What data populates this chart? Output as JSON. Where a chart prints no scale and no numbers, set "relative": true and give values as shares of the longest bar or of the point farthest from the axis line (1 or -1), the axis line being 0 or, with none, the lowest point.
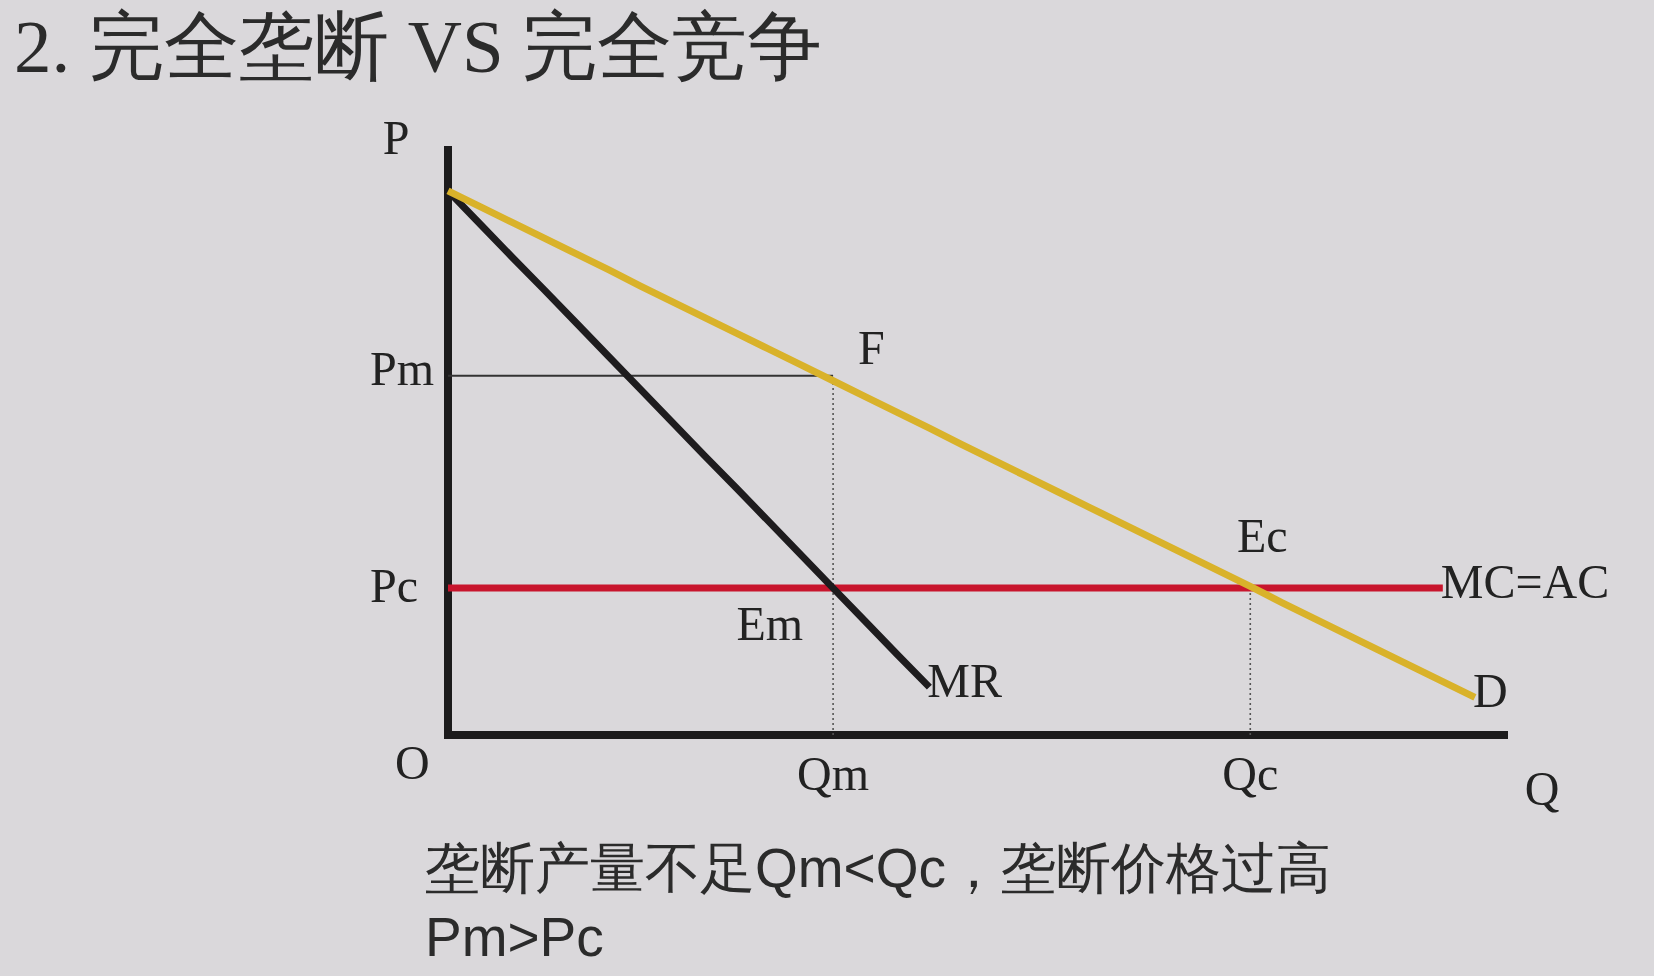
{
  "chart_data": {
    "type": "line",
    "title": "2. 完全垄断 VS 完全竞争",
    "xlabel": "Q",
    "ylabel": "P",
    "relative": true,
    "categories": [
      null,
      null,
      null,
      null,
      null,
      null,
      null,
      null,
      null,
      null,
      null,
      null,
      "Qm",
      null,
      null,
      null,
      null,
      null,
      null,
      null,
      null,
      null,
      null,
      null,
      null,
      "Qc",
      null,
      null,
      null,
      null,
      null,
      null,
      null,
      null
    ],
    "series": [
      {
        "name": "D",
        "color": "#d9b22a",
        "values": [
          1,
          0.971,
          0.942,
          0.913,
          0.884,
          0.855,
          0.825,
          0.796,
          0.767,
          0.738,
          0.709,
          0.68,
          0.651,
          0.622,
          0.593,
          0.564,
          0.534,
          0.505,
          0.476,
          0.447,
          0.418,
          0.389,
          0.36,
          0.331,
          0.302,
          0.273,
          0.243,
          0.214,
          0.185,
          0.156,
          0.127,
          0.098,
          0.069,
          null
        ]
      },
      {
        "name": "MR",
        "color": "#1e1c1e",
        "values": [
          1,
          0.939,
          0.878,
          0.818,
          0.757,
          0.696,
          0.635,
          0.574,
          0.513,
          0.453,
          0.392,
          0.331,
          0.27,
          0.209,
          0.148,
          0.088,
          null,
          null,
          null,
          null,
          null,
          null,
          null,
          null,
          null,
          null,
          null,
          null,
          null,
          null,
          null,
          null,
          null,
          null
        ]
      },
      {
        "name": "MC=AC",
        "color": "#c8152d",
        "values": [
          0.27,
          0.27,
          0.27,
          0.27,
          0.27,
          0.27,
          0.27,
          0.27,
          0.27,
          0.27,
          0.27,
          0.27,
          0.27,
          0.27,
          0.27,
          0.27,
          0.27,
          0.27,
          0.27,
          0.27,
          0.27,
          0.27,
          0.27,
          0.27,
          0.27,
          0.27,
          0.27,
          0.27,
          0.27,
          0.27,
          0.27,
          0.27,
          null,
          null
        ]
      },
      {
        "color": "#333333",
        "values": [
          0.66,
          0.66,
          0.66,
          0.66,
          0.66,
          0.66,
          0.66,
          0.66,
          0.66,
          0.66,
          0.66,
          0.66,
          0.66,
          null,
          null,
          null,
          null,
          null,
          null,
          null,
          null,
          null,
          null,
          null,
          null,
          null,
          null,
          null,
          null,
          null,
          null,
          null,
          null,
          null
        ]
      }
    ],
    "ref_lines": [
      {
        "axis": "x",
        "value": "Qm",
        "color": "#555555",
        "line_style": "dotted"
      },
      {
        "axis": "x",
        "value": "Qc",
        "color": "#555555",
        "line_style": "dotted"
      }
    ],
    "annotations": [
      "Pm",
      "Pc",
      "O",
      {
        "text": "F",
        "x": "Qm",
        "y": 0.66
      },
      {
        "text": "Ec",
        "x": "Qc",
        "y": 0.27
      },
      {
        "text": "Em",
        "x": "Qm",
        "y": 0.27
      },
      "垄断产量不足Qm<Qc，垄断价格过高Pm>Pc"
    ]
  }
}
